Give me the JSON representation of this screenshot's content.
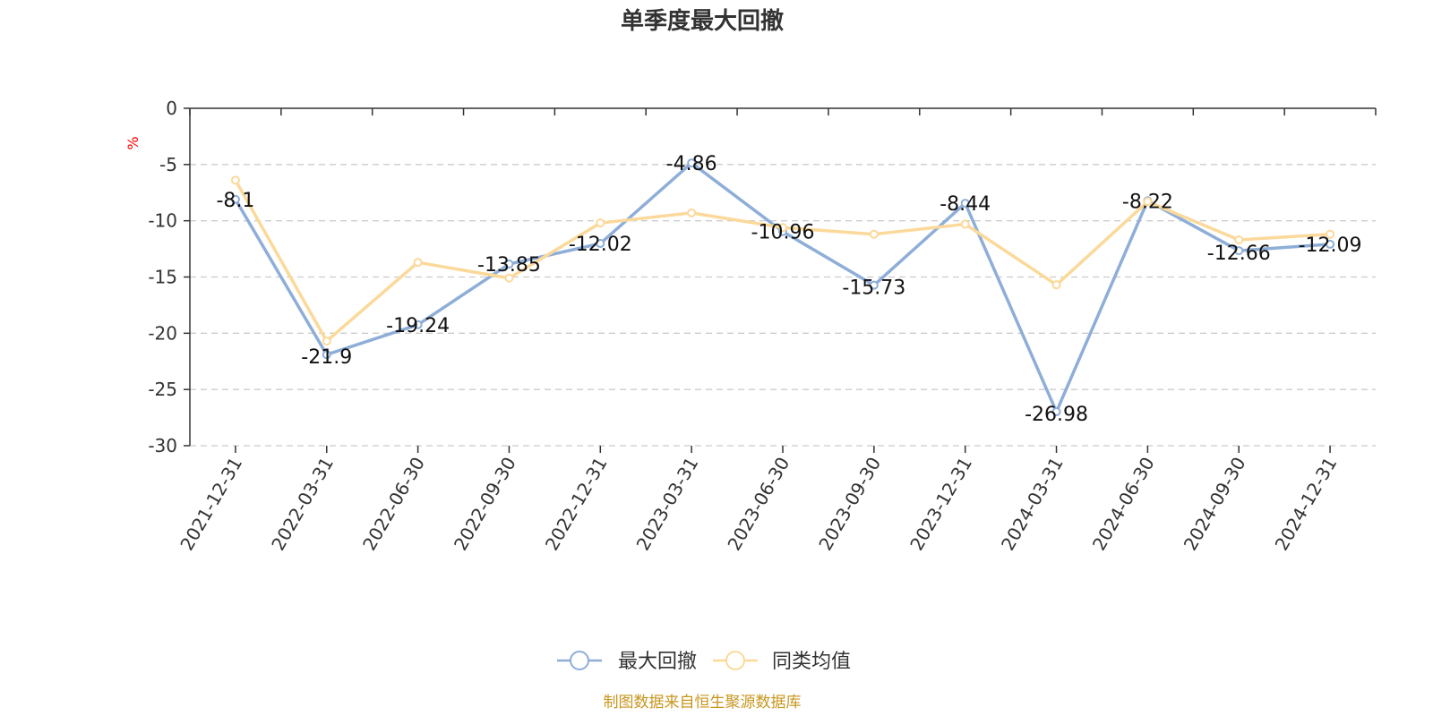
{
  "chart_data": {
    "type": "line",
    "title": "单季度最大回撤",
    "ylabel": "%",
    "ylim": [
      -30,
      0
    ],
    "yticks": [
      0,
      -5,
      -10,
      -15,
      -20,
      -25,
      -30
    ],
    "grid": true,
    "legend_position": "bottom",
    "categories": [
      "2021-12-31",
      "2022-03-31",
      "2022-06-30",
      "2022-09-30",
      "2022-12-31",
      "2023-03-31",
      "2023-06-30",
      "2023-09-30",
      "2023-12-31",
      "2024-03-31",
      "2024-06-30",
      "2024-09-30",
      "2024-12-31"
    ],
    "series": [
      {
        "name": "最大回撤",
        "color": "#8eaed8",
        "show_labels": true,
        "values": [
          -8.1,
          -21.9,
          -19.24,
          -13.85,
          -12.02,
          -4.86,
          -10.96,
          -15.73,
          -8.44,
          -26.98,
          -8.22,
          -12.66,
          -12.09
        ]
      },
      {
        "name": "同类均值",
        "color": "#fbd99a",
        "show_labels": false,
        "values": [
          -6.4,
          -20.7,
          -13.7,
          -15.1,
          -10.2,
          -9.3,
          -10.6,
          -11.2,
          -10.3,
          -15.7,
          -8.3,
          -11.7,
          -11.2
        ]
      }
    ],
    "source": "制图数据来自恒生聚源数据库"
  }
}
